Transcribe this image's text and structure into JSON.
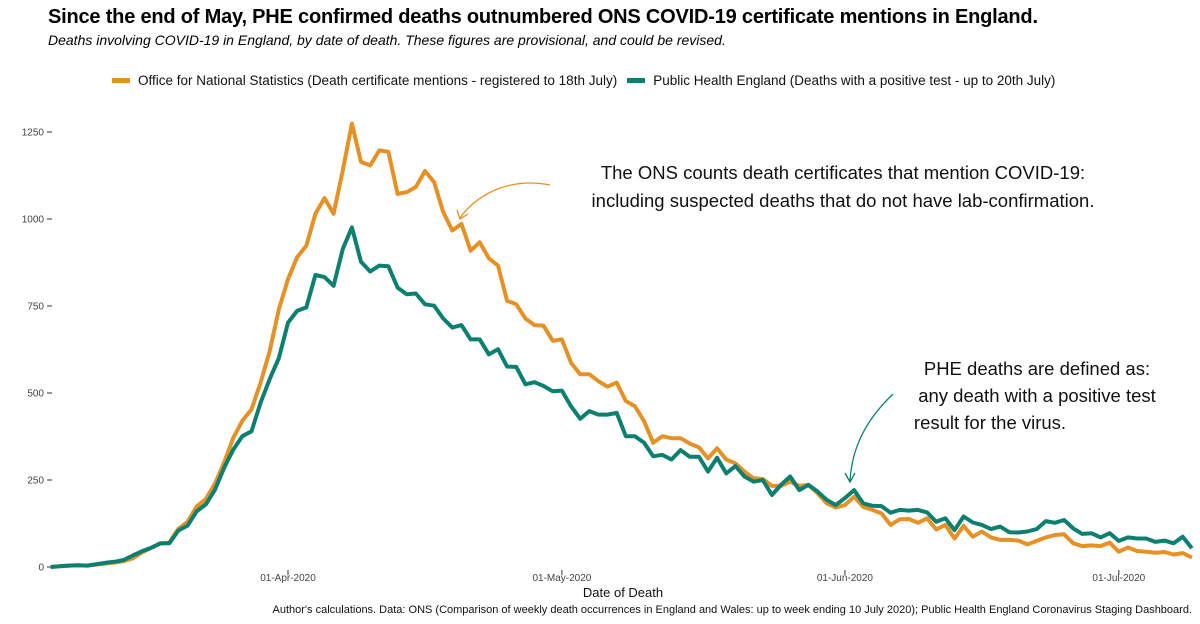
{
  "colors": {
    "ons": "#E69126",
    "phe": "#0B7F70"
  },
  "chart_data": {
    "type": "line",
    "title": "Since the end of May, PHE confirmed deaths outnumbered ONS COVID-19 certificate mentions in England.",
    "subtitle": "Deaths involving COVID-19 in England, by date of death. These figures are provisional, and could be revised.",
    "xlabel": "Date of Death",
    "ylabel": "",
    "ylim": [
      0,
      1300
    ],
    "yticks": [
      0,
      250,
      500,
      750,
      1000,
      1250
    ],
    "ytick_labels": [
      "0",
      "250",
      "500",
      "750",
      "1000",
      "1250"
    ],
    "xticks": [
      "2020-04-01",
      "2020-05-01",
      "2020-06-01",
      "2020-07-01"
    ],
    "xtick_labels": [
      "01-Apr-2020",
      "01-May-2020",
      "01-Jun-2020",
      "01-Jul-2020"
    ],
    "grid": false,
    "legend_position": "top",
    "x": [
      "2020-03-06",
      "2020-03-07",
      "2020-03-08",
      "2020-03-09",
      "2020-03-10",
      "2020-03-11",
      "2020-03-12",
      "2020-03-13",
      "2020-03-14",
      "2020-03-15",
      "2020-03-16",
      "2020-03-17",
      "2020-03-18",
      "2020-03-19",
      "2020-03-20",
      "2020-03-21",
      "2020-03-22",
      "2020-03-23",
      "2020-03-24",
      "2020-03-25",
      "2020-03-26",
      "2020-03-27",
      "2020-03-28",
      "2020-03-29",
      "2020-03-30",
      "2020-03-31",
      "2020-04-01",
      "2020-04-02",
      "2020-04-03",
      "2020-04-04",
      "2020-04-05",
      "2020-04-06",
      "2020-04-07",
      "2020-04-08",
      "2020-04-09",
      "2020-04-10",
      "2020-04-11",
      "2020-04-12",
      "2020-04-13",
      "2020-04-14",
      "2020-04-15",
      "2020-04-16",
      "2020-04-17",
      "2020-04-18",
      "2020-04-19",
      "2020-04-20",
      "2020-04-21",
      "2020-04-22",
      "2020-04-23",
      "2020-04-24",
      "2020-04-25",
      "2020-04-26",
      "2020-04-27",
      "2020-04-28",
      "2020-04-29",
      "2020-04-30",
      "2020-05-01",
      "2020-05-02",
      "2020-05-03",
      "2020-05-04",
      "2020-05-05",
      "2020-05-06",
      "2020-05-07",
      "2020-05-08",
      "2020-05-09",
      "2020-05-10",
      "2020-05-11",
      "2020-05-12",
      "2020-05-13",
      "2020-05-14",
      "2020-05-15",
      "2020-05-16",
      "2020-05-17",
      "2020-05-18",
      "2020-05-19",
      "2020-05-20",
      "2020-05-21",
      "2020-05-22",
      "2020-05-23",
      "2020-05-24",
      "2020-05-25",
      "2020-05-26",
      "2020-05-27",
      "2020-05-28",
      "2020-05-29",
      "2020-05-30",
      "2020-05-31",
      "2020-06-01",
      "2020-06-02",
      "2020-06-03",
      "2020-06-04",
      "2020-06-05",
      "2020-06-06",
      "2020-06-07",
      "2020-06-08",
      "2020-06-09",
      "2020-06-10",
      "2020-06-11",
      "2020-06-12",
      "2020-06-13",
      "2020-06-14",
      "2020-06-15",
      "2020-06-16",
      "2020-06-17",
      "2020-06-18",
      "2020-06-19",
      "2020-06-20",
      "2020-06-21",
      "2020-06-22",
      "2020-06-23",
      "2020-06-24",
      "2020-06-25",
      "2020-06-26",
      "2020-06-27",
      "2020-06-28",
      "2020-06-29",
      "2020-06-30",
      "2020-07-01",
      "2020-07-02",
      "2020-07-03",
      "2020-07-04",
      "2020-07-05",
      "2020-07-06",
      "2020-07-07",
      "2020-07-08",
      "2020-07-09"
    ],
    "series": [
      {
        "name": "Office for National Statistics (Death certificate mentions - registered to 18th July)",
        "color_key": "ons",
        "values": [
          0,
          2,
          4,
          5,
          4,
          7,
          10,
          13,
          17,
          25,
          42,
          55,
          67,
          70,
          110,
          130,
          174,
          195,
          240,
          300,
          371,
          420,
          453,
          530,
          620,
          741,
          827,
          890,
          923,
          1015,
          1060,
          1015,
          1140,
          1274,
          1164,
          1154,
          1197,
          1193,
          1072,
          1077,
          1092,
          1138,
          1106,
          1020,
          967,
          986,
          909,
          933,
          887,
          866,
          765,
          755,
          714,
          695,
          693,
          650,
          654,
          587,
          554,
          554,
          534,
          518,
          530,
          477,
          462,
          419,
          357,
          376,
          370,
          370,
          355,
          344,
          312,
          341,
          309,
          298,
          274,
          255,
          253,
          233,
          233,
          245,
          233,
          236,
          212,
          183,
          171,
          178,
          202,
          173,
          164,
          154,
          121,
          137,
          138,
          127,
          140,
          108,
          121,
          82,
          118,
          87,
          102,
          85,
          78,
          78,
          76,
          65,
          75,
          85,
          92,
          94,
          68,
          60,
          62,
          60,
          70,
          44,
          56,
          46,
          44,
          41,
          43,
          36,
          40,
          27
        ]
      },
      {
        "name": "Public Health England (Deaths with a positive test - up to 20th July)",
        "color_key": "phe",
        "values": [
          0,
          2,
          4,
          5,
          4,
          8,
          12,
          15,
          20,
          33,
          45,
          55,
          68,
          68,
          105,
          119,
          160,
          180,
          222,
          285,
          337,
          376,
          390,
          472,
          540,
          601,
          702,
          736,
          746,
          839,
          833,
          808,
          914,
          976,
          877,
          849,
          866,
          864,
          803,
          784,
          786,
          755,
          751,
          714,
          688,
          695,
          654,
          654,
          611,
          626,
          576,
          575,
          525,
          531,
          520,
          505,
          507,
          462,
          426,
          448,
          438,
          438,
          443,
          376,
          376,
          357,
          318,
          322,
          309,
          336,
          317,
          317,
          274,
          314,
          269,
          290,
          260,
          245,
          250,
          207,
          236,
          260,
          221,
          236,
          217,
          193,
          178,
          198,
          221,
          183,
          176,
          175,
          156,
          164,
          162,
          164,
          157,
          130,
          140,
          106,
          145,
          128,
          121,
          109,
          116,
          100,
          99,
          102,
          109,
          132,
          127,
          135,
          111,
          95,
          97,
          85,
          97,
          75,
          85,
          82,
          82,
          72,
          76,
          68,
          87,
          54
        ]
      }
    ],
    "annotations": [
      {
        "lines": [
          "The ONS counts death certificates that mention COVID-19:",
          "including suspected deaths that do not have lab-confirmation."
        ],
        "color_key": "ons"
      },
      {
        "lines": [
          "PHE deaths are defined as:",
          "any death with a positive test",
          "result for the virus."
        ],
        "color_key": "phe"
      }
    ],
    "caption": "Author's calculations. Data: ONS (Comparison of weekly death occurrences in England and Wales: up to week ending 10 July 2020); Public Health England Coronavirus Staging Dashboard."
  }
}
